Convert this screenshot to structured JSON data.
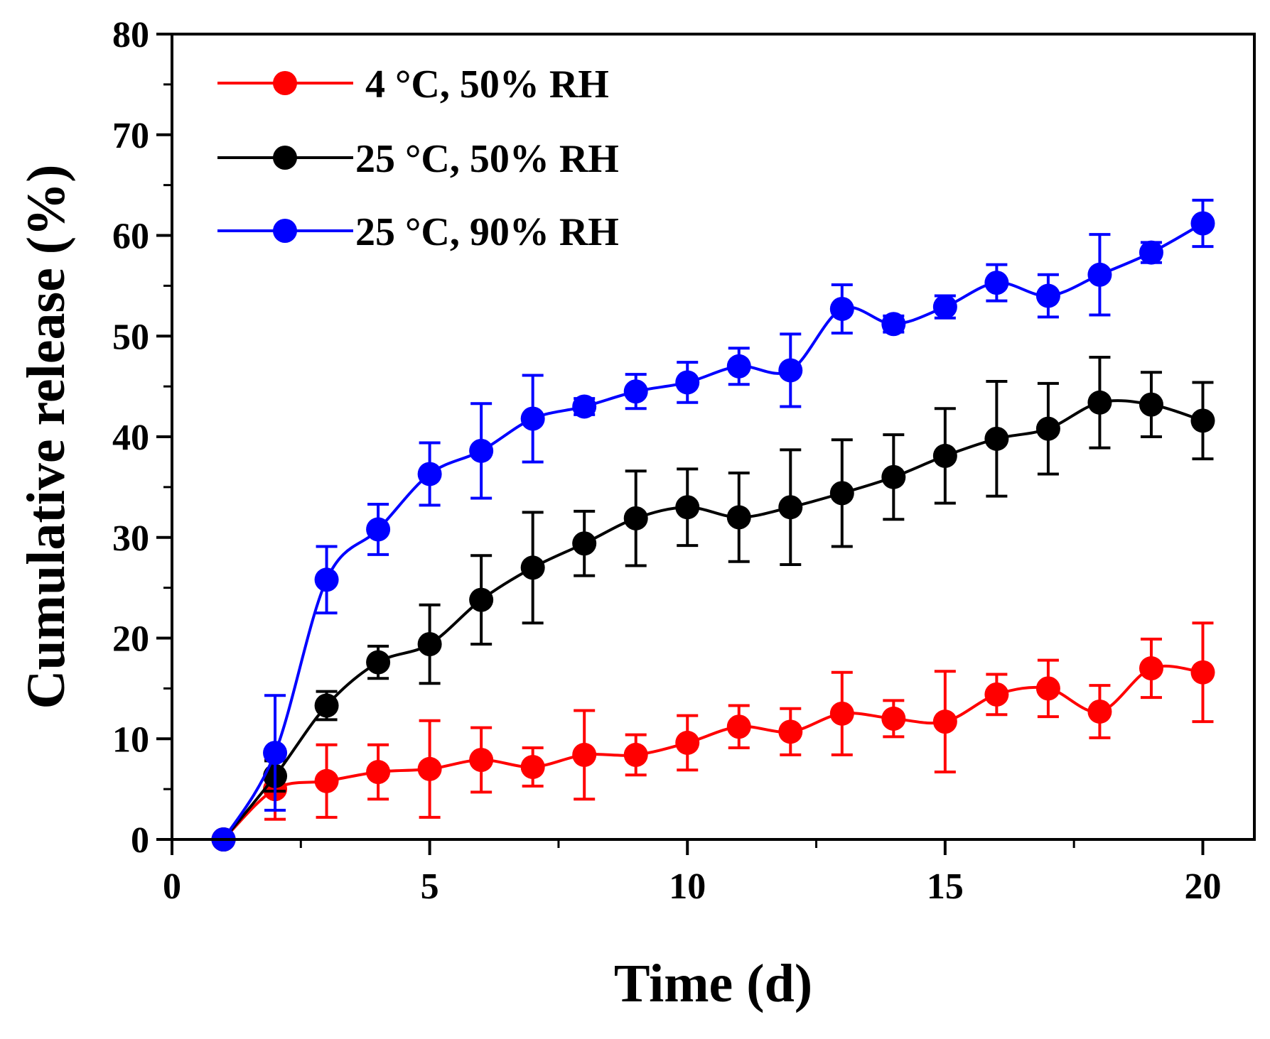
{
  "chart_data": {
    "type": "line",
    "title": "",
    "xlabel": "Time (d)",
    "ylabel": "Cumulative release (%)",
    "xlim": [
      0,
      21
    ],
    "ylim": [
      0,
      80
    ],
    "xticks": [
      0,
      5,
      10,
      15,
      20
    ],
    "yticks": [
      0,
      10,
      20,
      30,
      40,
      50,
      60,
      70,
      80
    ],
    "x_minor_step": 2.5,
    "y_minor_step": 5,
    "grid": false,
    "legend_position": "top-left",
    "x": [
      1,
      2,
      3,
      4,
      5,
      6,
      7,
      8,
      9,
      10,
      11,
      12,
      13,
      14,
      15,
      16,
      17,
      18,
      19,
      20
    ],
    "series": [
      {
        "name": " 4 °C, 50% RH",
        "color": "#ff0000",
        "values": [
          0,
          5.0,
          5.8,
          6.7,
          7.0,
          7.9,
          7.2,
          8.4,
          8.4,
          9.6,
          11.2,
          10.7,
          12.5,
          12.0,
          11.7,
          14.4,
          15.0,
          12.7,
          17.0,
          16.6
        ],
        "errors": [
          0,
          3.0,
          3.6,
          2.7,
          4.8,
          3.2,
          1.9,
          4.4,
          2.0,
          2.7,
          2.1,
          2.3,
          4.1,
          1.8,
          5.0,
          2.0,
          2.8,
          2.6,
          2.9,
          4.9
        ]
      },
      {
        "name": "25 °C, 50% RH",
        "color": "#000000",
        "values": [
          0,
          6.3,
          13.3,
          17.6,
          19.4,
          23.8,
          27.0,
          29.4,
          31.9,
          33.0,
          32.0,
          33.0,
          34.4,
          36.0,
          38.1,
          39.8,
          40.8,
          43.4,
          43.2,
          41.6
        ],
        "errors": [
          0,
          1.5,
          1.4,
          1.6,
          3.9,
          4.4,
          5.5,
          3.2,
          4.7,
          3.8,
          4.4,
          5.7,
          5.3,
          4.2,
          4.7,
          5.7,
          4.5,
          4.5,
          3.2,
          3.8
        ]
      },
      {
        "name": "25 °C, 90% RH",
        "color": "#0000ff",
        "values": [
          0,
          8.6,
          25.8,
          30.8,
          36.3,
          38.6,
          41.8,
          43.0,
          44.5,
          45.4,
          47.0,
          46.6,
          52.7,
          51.2,
          52.9,
          55.3,
          54.0,
          56.1,
          58.3,
          61.2
        ],
        "errors": [
          0,
          5.7,
          3.3,
          2.5,
          3.1,
          4.7,
          4.3,
          0.8,
          1.7,
          2.0,
          1.8,
          3.6,
          2.4,
          0.8,
          1.1,
          1.8,
          2.1,
          4.0,
          1.0,
          2.3
        ]
      }
    ]
  }
}
